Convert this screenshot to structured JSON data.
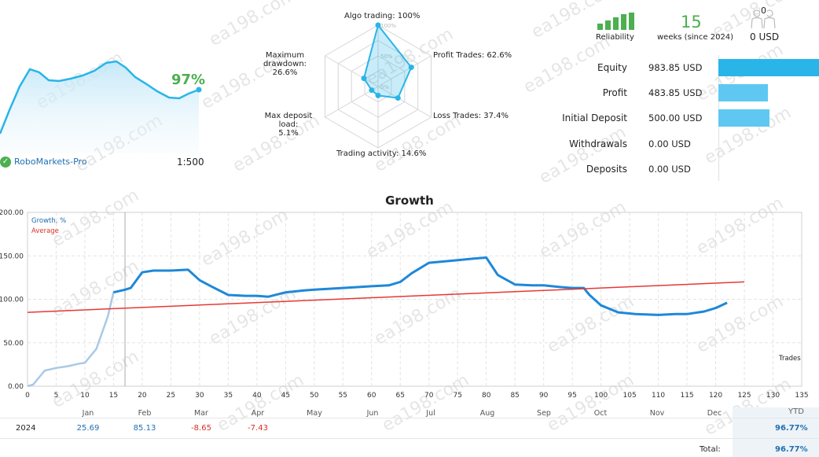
{
  "broker": {
    "name": "RoboMarkets-Pro",
    "leverage": "1:500",
    "percent": "97%"
  },
  "radar": {
    "items": [
      {
        "label": "Algo trading: 100%",
        "value": 100
      },
      {
        "label": "Profit Trades: 62.6%",
        "value": 62.6
      },
      {
        "label": "Loss Trades: 37.4%",
        "value": 37.4
      },
      {
        "label": "Trading activity: 14.6%",
        "value": 14.6
      },
      {
        "label1": "Max deposit load:",
        "label2": "5.1%",
        "value": 5.1
      },
      {
        "label1": "Maximum drawdown:",
        "label2": "26.6%",
        "value": 26.6
      }
    ],
    "rings": [
      "100%",
      "50%",
      "0%"
    ]
  },
  "stats": {
    "reliability_label": "Reliability",
    "weeks_value": "15",
    "weeks_label": "weeks (since 2024)",
    "subscribers_count": "0",
    "subscribers_value": "0 USD"
  },
  "finance": [
    {
      "label": "Equity",
      "value": "983.85 USD",
      "amount": 983.85
    },
    {
      "label": "Profit",
      "value": "483.85 USD",
      "amount": 483.85
    },
    {
      "label": "Initial Deposit",
      "value": "500.00 USD",
      "amount": 500.0
    },
    {
      "label": "Withdrawals",
      "value": "0.00 USD",
      "amount": 0
    },
    {
      "label": "Deposits",
      "value": "0.00 USD",
      "amount": 0
    }
  ],
  "colors": {
    "accent": "#29b5e8",
    "bar_light": "#5ec8f2",
    "growth_line": "#1e88d8",
    "early_line": "#a9c9e6",
    "average_line": "#e53935",
    "green": "#4caf50"
  },
  "chart_data": {
    "type": "line",
    "title": "Growth",
    "xlabel": "Trades",
    "ylabel": "",
    "xlim": [
      0,
      135
    ],
    "ylim": [
      0,
      200
    ],
    "x_ticks": [
      0,
      5,
      10,
      15,
      20,
      25,
      30,
      35,
      40,
      45,
      50,
      55,
      60,
      65,
      70,
      75,
      80,
      85,
      90,
      95,
      100,
      105,
      110,
      115,
      120,
      125,
      130,
      135
    ],
    "y_ticks": [
      "0.00",
      "50.00",
      "100.00",
      "150.00",
      "200.00"
    ],
    "months": [
      "Jan",
      "Feb",
      "Mar",
      "Apr",
      "May",
      "Jun",
      "Jul",
      "Aug",
      "Sep",
      "Oct",
      "Nov",
      "Dec"
    ],
    "legend": [
      "Growth, %",
      "Average"
    ],
    "series": [
      {
        "name": "Growth, %",
        "x": [
          0,
          1,
          3,
          5,
          7,
          9,
          10,
          12,
          14,
          15,
          17,
          18,
          20,
          22,
          25,
          28,
          30,
          32,
          35,
          38,
          40,
          42,
          45,
          48,
          50,
          55,
          60,
          63,
          65,
          67,
          70,
          75,
          78,
          80,
          82,
          85,
          88,
          90,
          93,
          95,
          97,
          98,
          100,
          103,
          106,
          110,
          113,
          115,
          118,
          120,
          122
        ],
        "y": [
          0,
          2,
          18,
          21,
          23,
          26,
          27,
          43,
          80,
          108,
          111,
          113,
          131,
          133,
          133,
          134,
          122,
          115,
          105,
          104,
          104,
          103,
          108,
          110,
          111,
          113,
          115,
          116,
          120,
          130,
          142,
          145,
          147,
          148,
          128,
          117,
          116,
          116,
          114,
          113,
          113,
          105,
          93,
          85,
          83,
          82,
          83,
          83,
          86,
          90,
          96
        ]
      },
      {
        "name": "Average",
        "x": [
          0,
          125
        ],
        "y": [
          85,
          120
        ]
      }
    ],
    "early_segment_end_x": 17,
    "marker_x": 17
  },
  "year_table": {
    "year": "2024",
    "values": [
      "25.69",
      "85.13",
      "-8.65",
      "-7.43",
      "",
      "",
      "",
      "",
      "",
      "",
      "",
      ""
    ],
    "ytd_label": "YTD",
    "ytd": "96.77%",
    "total_label": "Total:",
    "total": "96.77%"
  },
  "watermark": "ea198.com"
}
